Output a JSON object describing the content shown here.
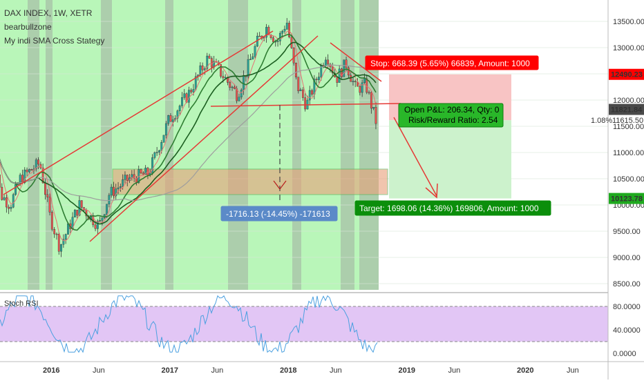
{
  "header": {
    "symbol": "DAX INDEX, 1W, XETR",
    "author": "bearbullzone",
    "indicator": "My indi SMA Cross Stategy"
  },
  "price_axis": {
    "ticks": [
      "13500.00",
      "13000.00",
      "12500.00",
      "12000.00",
      "11500.00",
      "11000.00",
      "10500.00",
      "10000.00",
      "9500.00",
      "9000.00",
      "8500.00"
    ],
    "badges": {
      "stop_price": "12490.23",
      "last_price": "11821.84",
      "target_price": "10123.78",
      "entry_price": "11615.50"
    },
    "pct_label": "1.08%"
  },
  "time_axis": {
    "ticks": [
      "2016",
      "Jun",
      "2017",
      "Jun",
      "2018",
      "Jun",
      "2019",
      "Jun",
      "2020",
      "Jun"
    ]
  },
  "stoch_axis": {
    "ticks": [
      "80.0000",
      "40.0000",
      "0.0000"
    ]
  },
  "annotations": {
    "stop_box": "Stop: 668.39 (5.65%) 66839, Amount: 1000",
    "pnl_line1": "Open P&L: 206.34, Qty: 0",
    "pnl_line2": "Risk/Reward Ratio: 2.54",
    "target_box": "Target: 1698.06 (14.36%) 169806, Amount: 1000",
    "measure_box": "-1716.13 (-14.45%) -171613"
  },
  "stoch_panel": {
    "title": "Stoch RSI"
  },
  "colors": {
    "bull_candle": "#26a69a",
    "bear_candle": "#ef5350",
    "bg_green": "#b9f6b9",
    "bg_grey": "#a9c4a9",
    "trendline": "#e53935",
    "stop_zone": "#f8c4c4",
    "target_zone": "#ccf2cc",
    "stoch_band": "#e2c6f5",
    "stoch_line": "#4aa0e0"
  },
  "chart_data": {
    "type": "candlestick",
    "title": "DAX INDEX, 1W, XETR",
    "ylim": [
      8500,
      13750
    ],
    "x_range": [
      "2015-07",
      "2020-10"
    ],
    "price_path": [
      [
        "2015-07",
        11500
      ],
      [
        "2015-08",
        10200
      ],
      [
        "2015-09",
        10000
      ],
      [
        "2015-10",
        10500
      ],
      [
        "2015-12",
        10800
      ],
      [
        "2016-01",
        9800
      ],
      [
        "2016-02",
        9200
      ],
      [
        "2016-04",
        10000
      ],
      [
        "2016-06",
        9600
      ],
      [
        "2016-07",
        10200
      ],
      [
        "2016-09",
        10500
      ],
      [
        "2016-11",
        10600
      ],
      [
        "2017-01",
        11600
      ],
      [
        "2017-03",
        12100
      ],
      [
        "2017-05",
        12800
      ],
      [
        "2017-06",
        12600
      ],
      [
        "2017-08",
        12100
      ],
      [
        "2017-10",
        13100
      ],
      [
        "2017-11",
        13400
      ],
      [
        "2017-12",
        13100
      ],
      [
        "2018-01",
        13500
      ],
      [
        "2018-02",
        12300
      ],
      [
        "2018-03",
        11900
      ],
      [
        "2018-05",
        12900
      ],
      [
        "2018-06",
        12400
      ],
      [
        "2018-07",
        12700
      ],
      [
        "2018-08",
        12200
      ],
      [
        "2018-09",
        12300
      ],
      [
        "2018-10",
        11600
      ]
    ],
    "stop_level": 12490.23,
    "entry_level": 11615.5,
    "target_level": 10123.78,
    "last_price": 11821.84,
    "stoch_rsi": {
      "ylim": [
        0,
        100
      ],
      "bands": [
        20,
        80
      ]
    }
  }
}
